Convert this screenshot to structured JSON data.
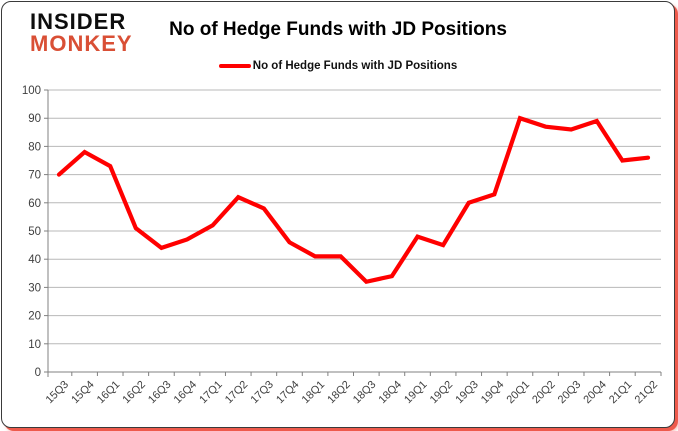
{
  "branding": {
    "line1": "INSIDER",
    "line2": "MONKEY",
    "line2_color": "#d94f35"
  },
  "title": "No of Hedge Funds with JD Positions",
  "legend": {
    "label": "No of Hedge Funds with JD Positions",
    "color": "#ff0000"
  },
  "axis": {
    "label_color": "#3f3f3f",
    "axis_color": "#808080",
    "grid_color": "#b8b8b8"
  },
  "chart_data": {
    "type": "line",
    "title": "No of Hedge Funds with JD Positions",
    "categories": [
      "15Q3",
      "15Q4",
      "16Q1",
      "16Q2",
      "16Q3",
      "16Q4",
      "17Q1",
      "17Q2",
      "17Q3",
      "17Q4",
      "18Q1",
      "18Q2",
      "18Q3",
      "18Q4",
      "19Q1",
      "19Q2",
      "19Q3",
      "19Q4",
      "20Q1",
      "20Q2",
      "20Q3",
      "20Q4",
      "21Q1",
      "21Q2"
    ],
    "series": [
      {
        "name": "No of Hedge Funds with JD Positions",
        "color": "#ff0000",
        "values": [
          70,
          78,
          73,
          51,
          44,
          47,
          52,
          62,
          58,
          46,
          41,
          41,
          32,
          34,
          48,
          45,
          60,
          63,
          90,
          87,
          86,
          89,
          75,
          76
        ]
      }
    ],
    "xlabel": "",
    "ylabel": "",
    "ylim": [
      0,
      100
    ],
    "ytick_step": 10,
    "grid": true,
    "legend_position": "top-center",
    "x_tick_rotation": -45
  }
}
